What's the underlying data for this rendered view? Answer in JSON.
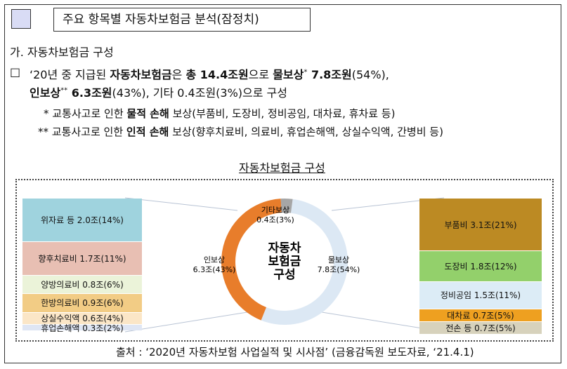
{
  "title": "주요 항목별 자동차보험금 분석(잠정치)",
  "section": "가. 자동차보험금 구성",
  "bullet": {
    "marker": "□",
    "line1": [
      {
        "t": "‘20년 중 지급된 ",
        "b": false
      },
      {
        "t": "자동차보험금",
        "b": true
      },
      {
        "t": "은 ",
        "b": false
      },
      {
        "t": "총 14.4조원",
        "b": true
      },
      {
        "t": "으로 ",
        "b": false
      },
      {
        "t": "물보상",
        "b": true
      },
      {
        "t": "*",
        "b": false,
        "sup": true
      },
      {
        "t": " 7.8조원",
        "b": true
      },
      {
        "t": "(54%),",
        "b": false
      }
    ],
    "line2": [
      {
        "t": "인보상",
        "b": true
      },
      {
        "t": "**",
        "b": false,
        "sup": true
      },
      {
        "t": " 6.3조원",
        "b": true
      },
      {
        "t": "(43%), 기타 0.4조원(3%)으로 구성",
        "b": false
      }
    ]
  },
  "notes": {
    "n1": [
      {
        "t": "* 교통사고로 인한 ",
        "b": false
      },
      {
        "t": "물적 손해",
        "b": true
      },
      {
        "t": " 보상(부품비, 도장비, 정비공임, 대차료, 휴차료 등)",
        "b": false
      }
    ],
    "n2": [
      {
        "t": "** 교통사고로 인한 ",
        "b": false
      },
      {
        "t": "인적 손해",
        "b": true
      },
      {
        "t": " 보상(향후치료비, 의료비, 휴업손해액, 상실수익액, 간병비 등)",
        "b": false
      }
    ]
  },
  "chart_title": "자동차보험금 구성",
  "chart_data": {
    "type": "pie",
    "center_label": [
      "자동차",
      "보험금",
      "구성"
    ],
    "slices": [
      {
        "name": "물보상",
        "label": "7.8조(54%)",
        "percent": 54,
        "color": "#dce8f4"
      },
      {
        "name": "인보상",
        "label": "6.3조(43%)",
        "percent": 43,
        "color": "#e87d2b"
      },
      {
        "name": "기타보상",
        "label": "0.4조(3%)",
        "percent": 3,
        "color": "#a6a6a6"
      }
    ],
    "left_breakdown": [
      {
        "label": "위자료 등 2.0조(14%)",
        "percent": 14,
        "color": "#9fd3de"
      },
      {
        "label": "향후치료비 1.7조(11%)",
        "percent": 11,
        "color": "#e8bfb3"
      },
      {
        "label": "양방의료비 0.8조(6%)",
        "percent": 6,
        "color": "#ebf3d9"
      },
      {
        "label": "한방의료비 0.9조(6%)",
        "percent": 6,
        "color": "#f2cc85"
      },
      {
        "label": "상실수익액 0.6조(4%)",
        "percent": 4,
        "color": "#fbe6c7"
      },
      {
        "label": "휴업손해액 0.3조(2%)",
        "percent": 2,
        "color": "#dfe6f4"
      }
    ],
    "right_breakdown": [
      {
        "label": "부품비 3.1조(21%)",
        "percent": 21,
        "color": "#bc8a23"
      },
      {
        "label": "도장비 1.8조(12%)",
        "percent": 12,
        "color": "#93d06b"
      },
      {
        "label": "정비공임 1.5조(11%)",
        "percent": 11,
        "color": "#dcecf6"
      },
      {
        "label": "대차료 0.7조(5%)",
        "percent": 5,
        "color": "#eea020"
      },
      {
        "label": "전손 등 0.7조(5%)",
        "percent": 5,
        "color": "#d7d2bc"
      }
    ]
  },
  "source": "출처 : ‘2020년 자동차보험 사업실적 및 시사점’ (금융감독원 보도자료, ‘21.4.1)"
}
